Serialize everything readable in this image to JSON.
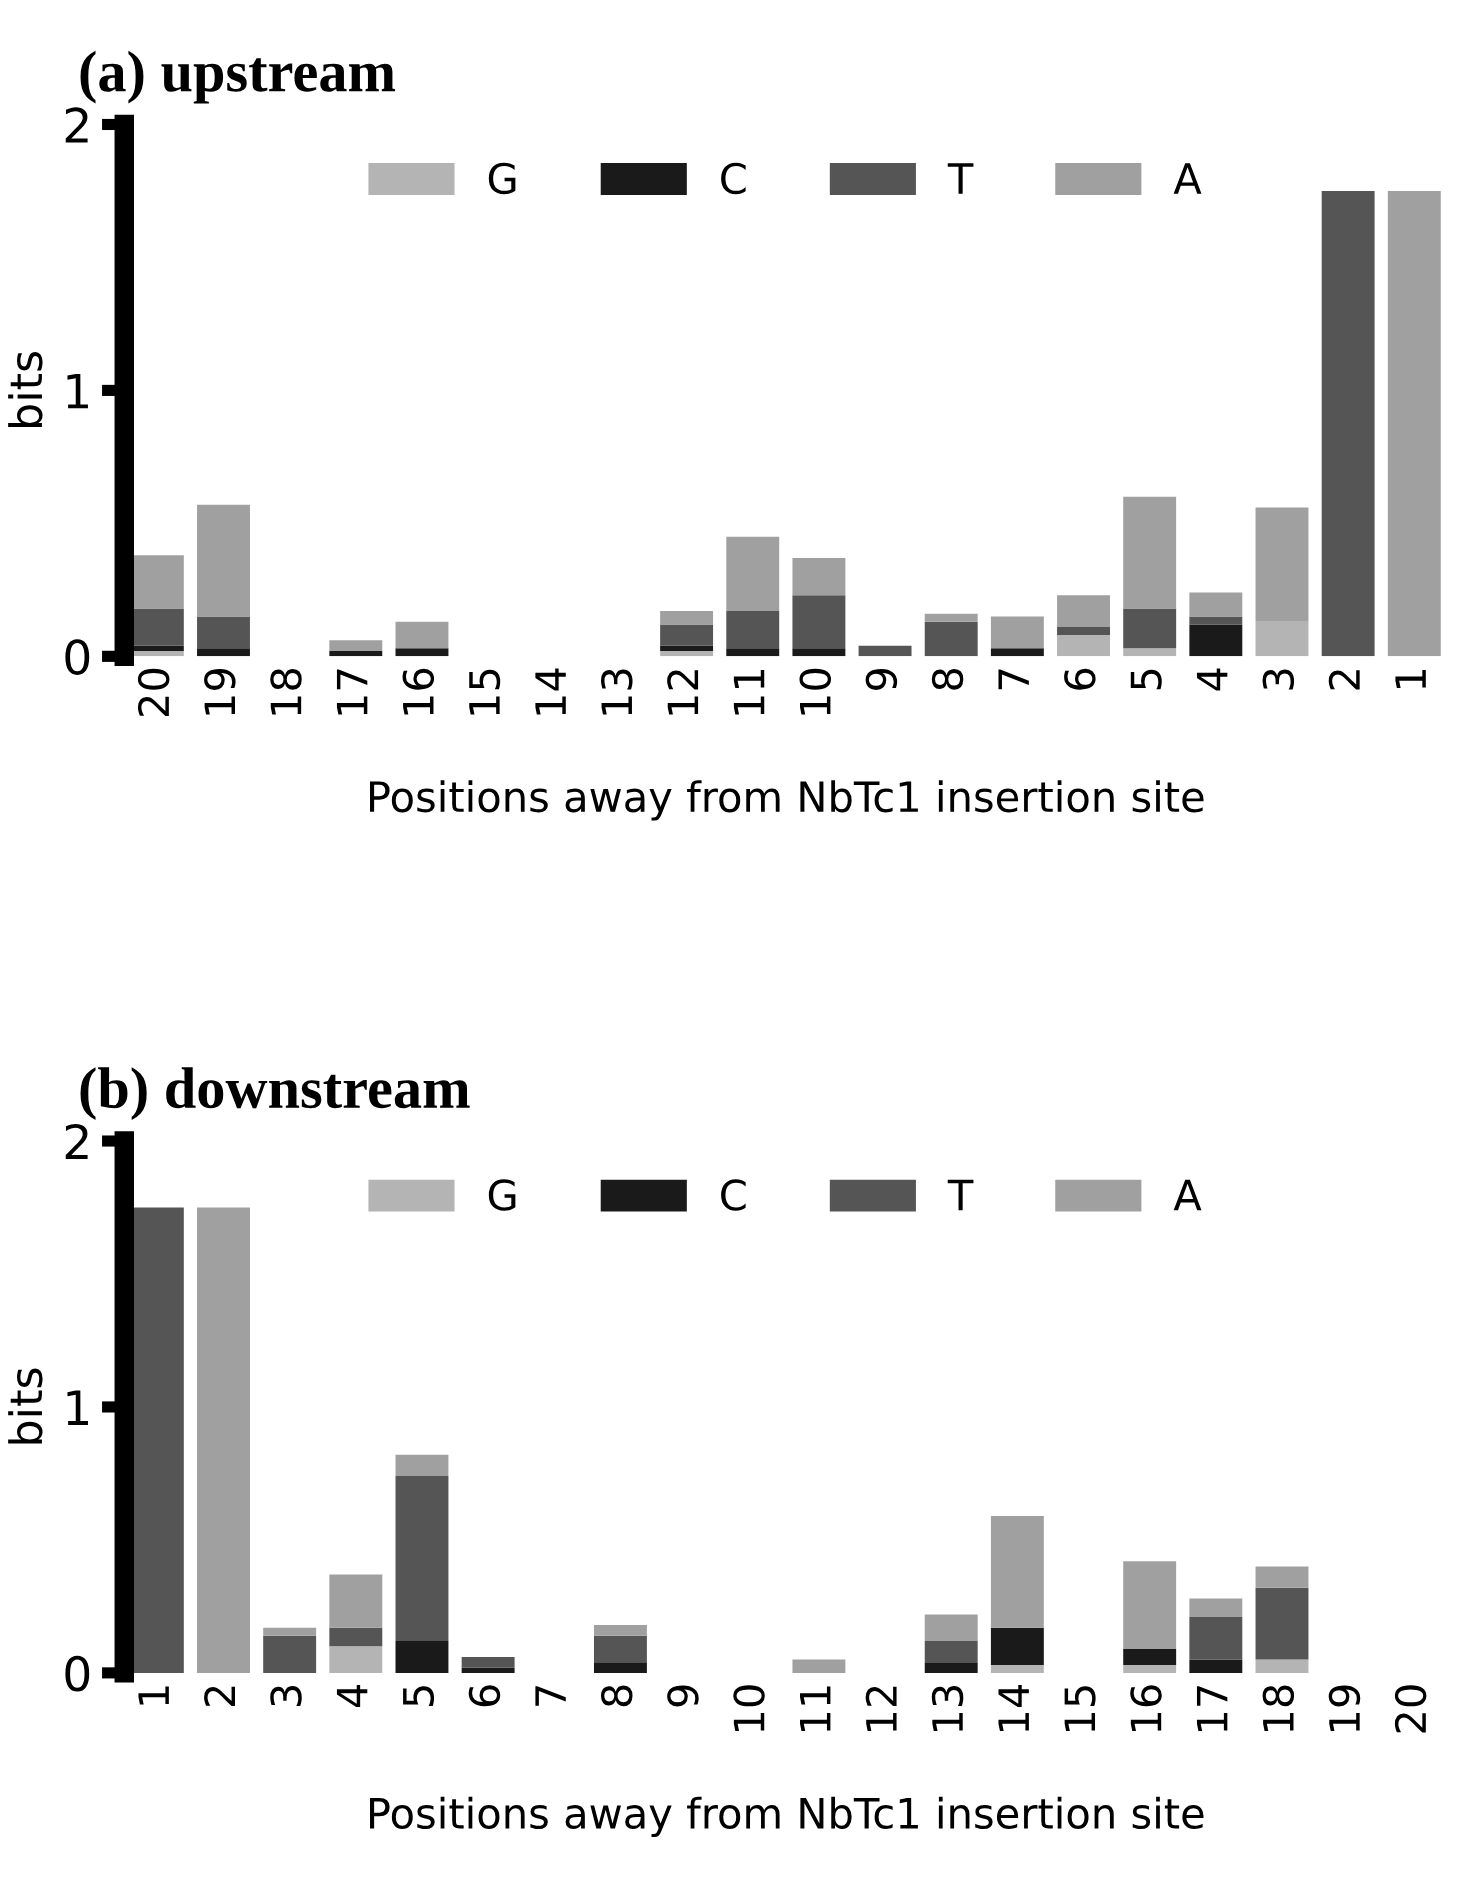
{
  "chart_data": [
    {
      "type": "bar",
      "stacked": true,
      "title": "(a) upstream",
      "xlabel": "Positions away from NbTc1 insertion site",
      "ylabel": "bits",
      "categories": [
        "20",
        "19",
        "18",
        "17",
        "16",
        "15",
        "14",
        "13",
        "12",
        "11",
        "10",
        "9",
        "8",
        "7",
        "6",
        "5",
        "4",
        "3",
        "2",
        "1"
      ],
      "ylim": [
        0,
        2
      ],
      "yticks": [
        0,
        1,
        2
      ],
      "grid": false,
      "legend": "top",
      "series": [
        {
          "name": "G",
          "color": "#b4b4b4",
          "values": [
            0.02,
            0,
            0,
            0,
            0,
            0,
            0,
            0,
            0.02,
            0,
            0,
            null,
            0,
            0,
            0.08,
            0.03,
            0,
            0.13,
            0,
            0
          ]
        },
        {
          "name": "C",
          "color": "#1a1a1a",
          "values": [
            0.02,
            0.03,
            0,
            0.02,
            0.03,
            0,
            0,
            0,
            0.02,
            0.03,
            0.03,
            0,
            0,
            0.03,
            0,
            0,
            0.12,
            0,
            0,
            0
          ]
        },
        {
          "name": "T",
          "color": "#555555",
          "values": [
            0.14,
            0.12,
            0,
            0,
            0,
            0,
            0,
            0,
            0.08,
            0.14,
            0.2,
            0.04,
            0.13,
            0,
            0.03,
            0.15,
            0.03,
            0,
            1.75,
            0
          ]
        },
        {
          "name": "A",
          "color": "#a0a0a0",
          "values": [
            0.2,
            0.42,
            0,
            0.04,
            0.1,
            0,
            0,
            0,
            0.05,
            0.28,
            0.14,
            0,
            0.03,
            0.12,
            0.12,
            0.42,
            0.09,
            0.43,
            0,
            1.75
          ]
        }
      ]
    },
    {
      "type": "bar",
      "stacked": true,
      "title": "(b) downstream",
      "xlabel": "Positions away from NbTc1 insertion site",
      "ylabel": "bits",
      "categories": [
        "1",
        "2",
        "3",
        "4",
        "5",
        "6",
        "7",
        "8",
        "9",
        "10",
        "11",
        "12",
        "13",
        "14",
        "15",
        "16",
        "17",
        "18",
        "19",
        "20"
      ],
      "ylim": [
        0,
        2
      ],
      "yticks": [
        0,
        1,
        2
      ],
      "grid": false,
      "legend": "top",
      "series": [
        {
          "name": "G",
          "color": "#b4b4b4",
          "values": [
            0,
            0,
            0,
            0.1,
            0,
            0,
            0,
            0,
            0,
            0,
            0,
            0,
            0,
            0.03,
            0,
            0.03,
            0,
            0.05,
            0,
            0
          ]
        },
        {
          "name": "C",
          "color": "#1a1a1a",
          "values": [
            0,
            0,
            0,
            0,
            0.12,
            0.02,
            0,
            0.04,
            0,
            0,
            0,
            0,
            0.04,
            0.14,
            0,
            0.06,
            0.05,
            0,
            0,
            0
          ]
        },
        {
          "name": "T",
          "color": "#555555",
          "values": [
            1.75,
            0,
            0.14,
            0.07,
            0.62,
            0.04,
            0,
            0.1,
            0,
            0,
            0,
            0,
            0.08,
            0,
            0,
            0,
            0.16,
            0.27,
            0,
            0
          ]
        },
        {
          "name": "A",
          "color": "#a0a0a0",
          "values": [
            0,
            1.75,
            0.03,
            0.2,
            0.08,
            0,
            0,
            0.04,
            0,
            0,
            0.05,
            0,
            0.1,
            0.42,
            0,
            0.33,
            0.07,
            0.08,
            0,
            0
          ]
        }
      ]
    }
  ]
}
